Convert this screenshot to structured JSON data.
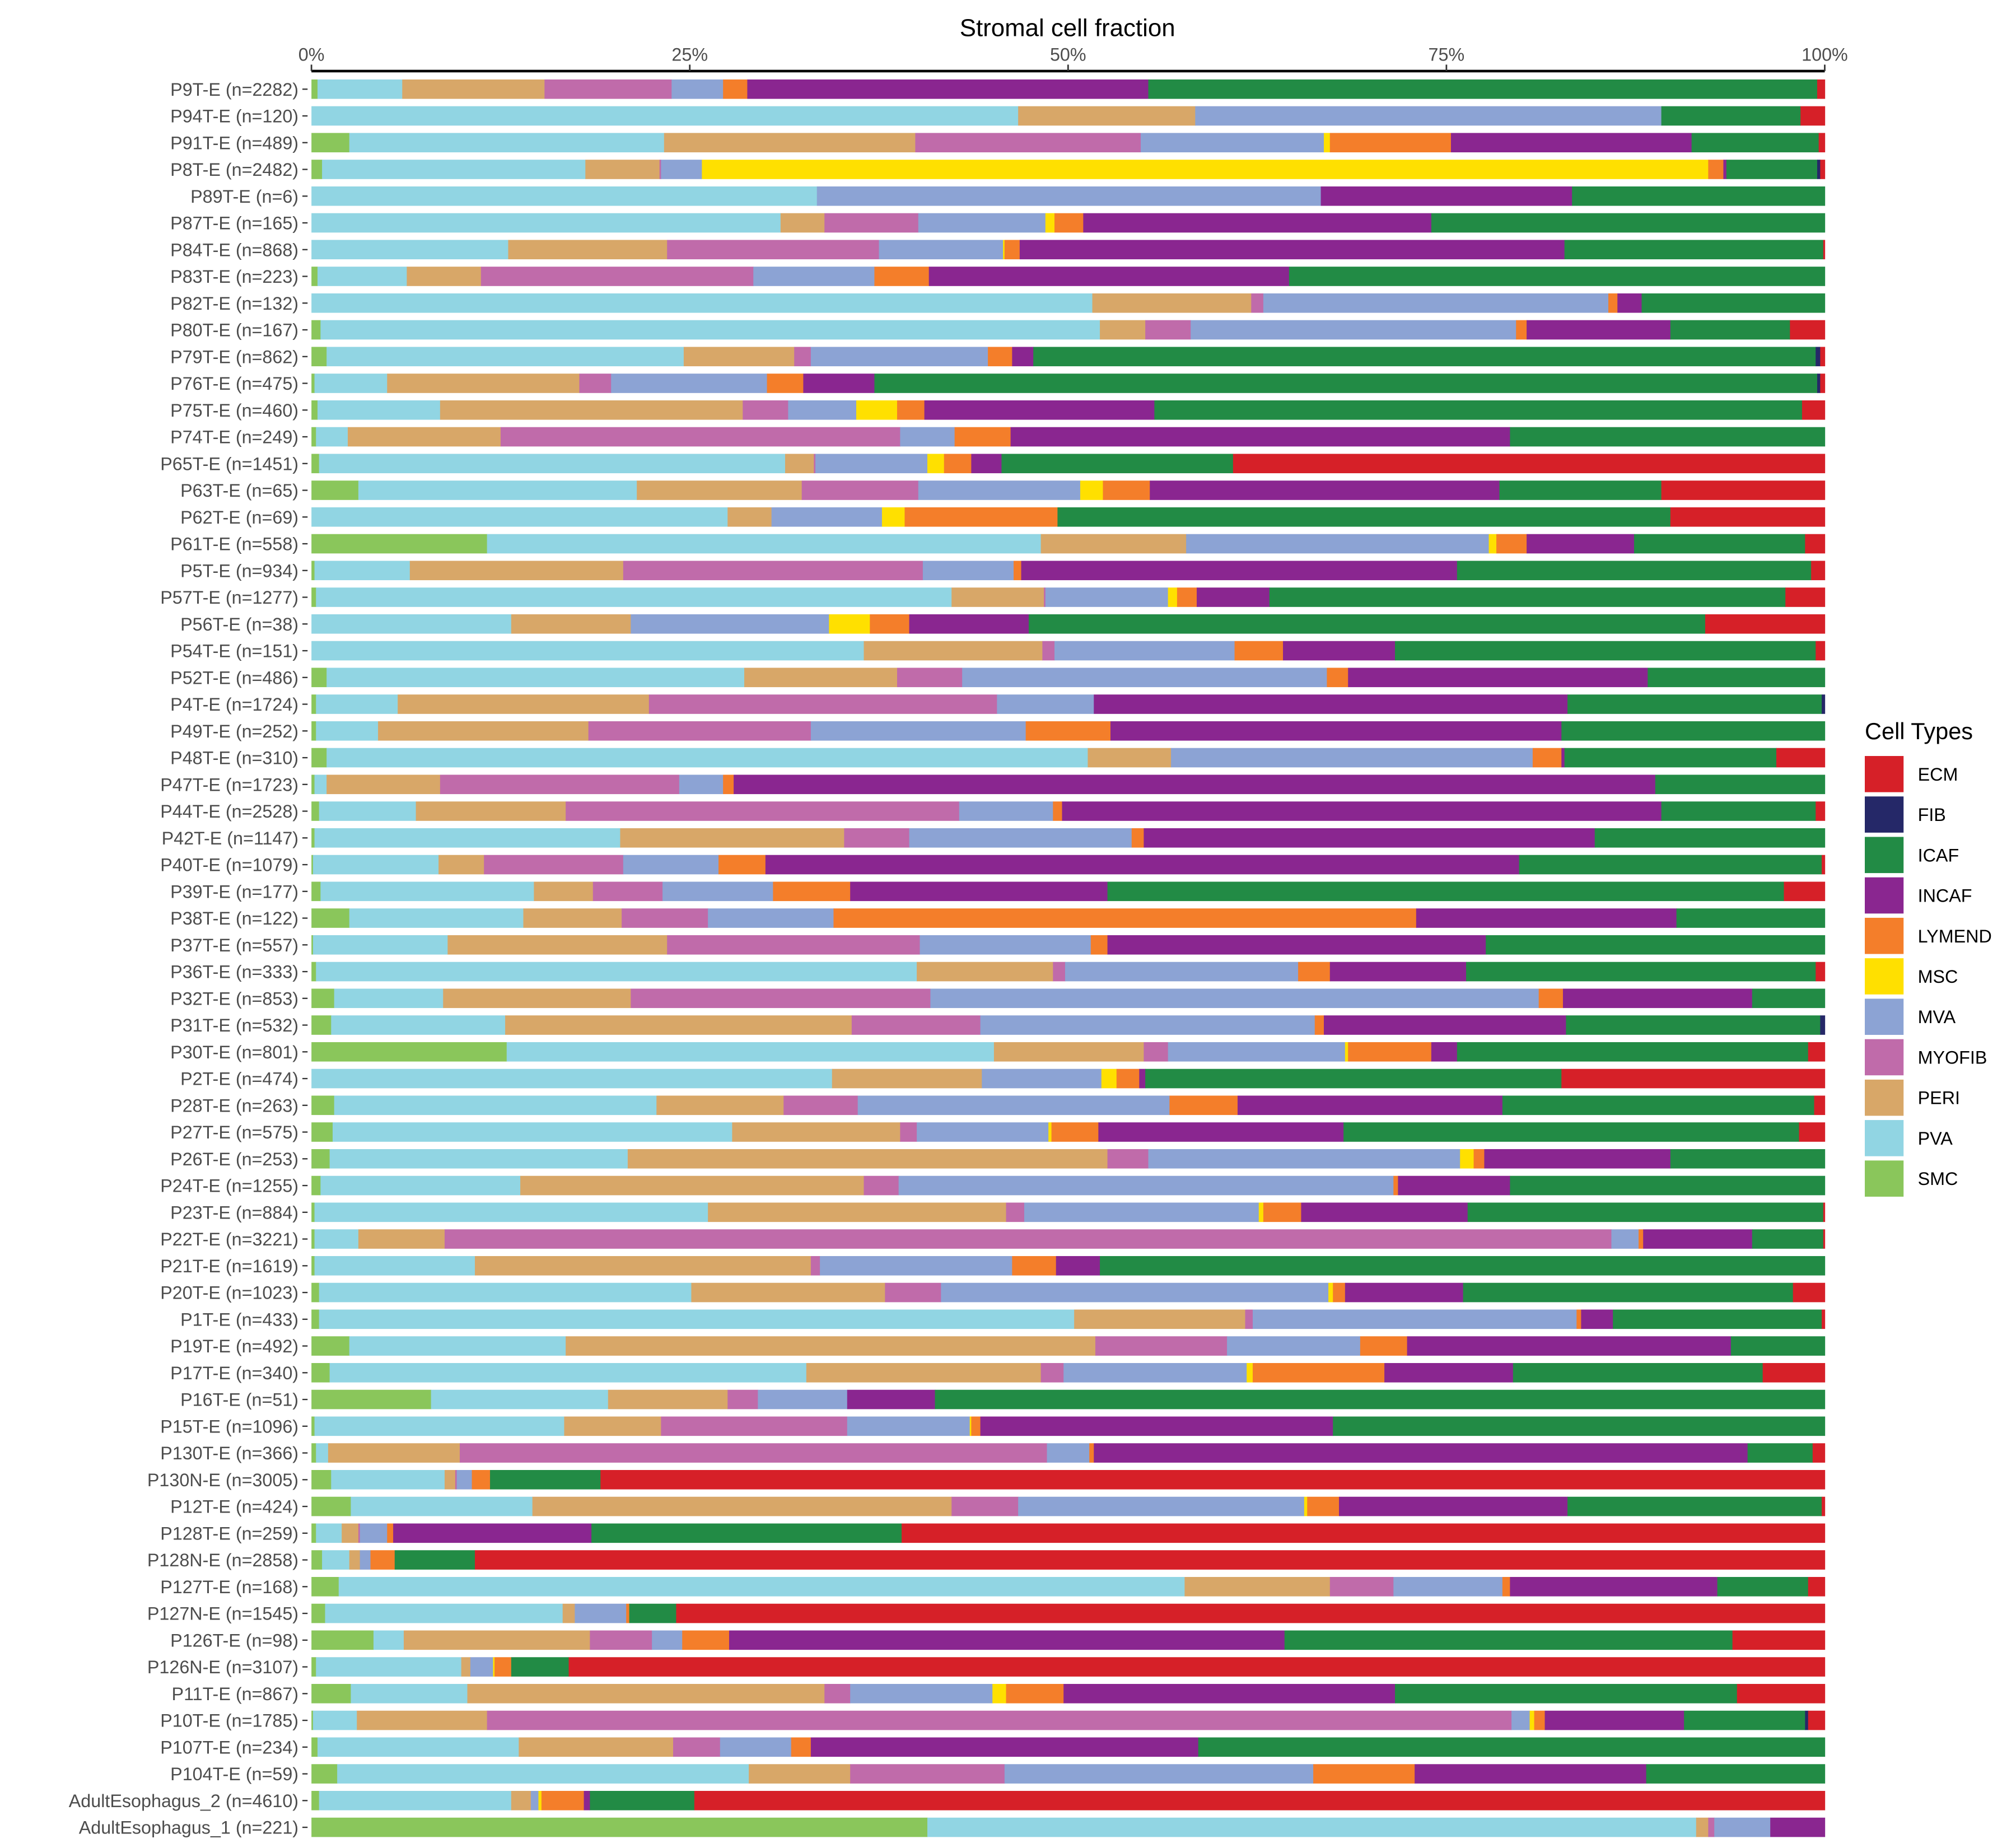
{
  "chart_data": {
    "type": "bar",
    "orientation": "horizontal",
    "stacked": true,
    "title": "Stromal cell fraction",
    "xlabel": "Stromal cell fraction",
    "ylabel": "",
    "xlim": [
      0,
      100
    ],
    "x_ticks": [
      "0%",
      "25%",
      "50%",
      "75%",
      "100%"
    ],
    "x_tick_values": [
      0,
      25,
      50,
      75,
      100
    ],
    "axis_position": "top",
    "grid": false,
    "legend": {
      "title": "Cell Types",
      "position": "right",
      "entries": [
        "ECM",
        "FIB",
        "ICAF",
        "INCAF",
        "LYMEND",
        "MSC",
        "MVA",
        "MYOFIB",
        "PERI",
        "PVA",
        "SMC"
      ]
    },
    "colors": {
      "ECM": "#d62028",
      "FIB": "#252868",
      "ICAF": "#228b45",
      "INCAF": "#8a2690",
      "LYMEND": "#f47e2a",
      "MSC": "#ffe000",
      "MVA": "#8ca3d4",
      "MYOFIB": "#c06baa",
      "PERI": "#d8a768",
      "PVA": "#91d5e3",
      "SMC": "#8ac65b"
    },
    "stack_order": [
      "SMC",
      "PVA",
      "PERI",
      "MYOFIB",
      "MVA",
      "MSC",
      "LYMEND",
      "INCAF",
      "ICAF",
      "FIB",
      "ECM"
    ],
    "categories": [
      "P9T-E (n=2282)",
      "P94T-E (n=120)",
      "P91T-E (n=489)",
      "P8T-E (n=2482)",
      "P89T-E (n=6)",
      "P87T-E (n=165)",
      "P84T-E (n=868)",
      "P83T-E (n=223)",
      "P82T-E (n=132)",
      "P80T-E (n=167)",
      "P79T-E (n=862)",
      "P76T-E (n=475)",
      "P75T-E (n=460)",
      "P74T-E (n=249)",
      "P65T-E (n=1451)",
      "P63T-E (n=65)",
      "P62T-E (n=69)",
      "P61T-E (n=558)",
      "P5T-E (n=934)",
      "P57T-E (n=1277)",
      "P56T-E (n=38)",
      "P54T-E (n=151)",
      "P52T-E (n=486)",
      "P4T-E (n=1724)",
      "P49T-E (n=252)",
      "P48T-E (n=310)",
      "P47T-E (n=1723)",
      "P44T-E (n=2528)",
      "P42T-E (n=1147)",
      "P40T-E (n=1079)",
      "P39T-E (n=177)",
      "P38T-E (n=122)",
      "P37T-E (n=557)",
      "P36T-E (n=333)",
      "P32T-E (n=853)",
      "P31T-E (n=532)",
      "P30T-E (n=801)",
      "P2T-E (n=474)",
      "P28T-E (n=263)",
      "P27T-E (n=575)",
      "P26T-E (n=253)",
      "P24T-E (n=1255)",
      "P23T-E (n=884)",
      "P22T-E (n=3221)",
      "P21T-E (n=1619)",
      "P20T-E (n=1023)",
      "P1T-E (n=433)",
      "P19T-E (n=492)",
      "P17T-E (n=340)",
      "P16T-E (n=51)",
      "P15T-E (n=1096)",
      "P130T-E (n=366)",
      "P130N-E (n=3005)",
      "P12T-E (n=424)",
      "P128T-E (n=259)",
      "P128N-E (n=2858)",
      "P127T-E (n=168)",
      "P127N-E (n=1545)",
      "P126T-E (n=98)",
      "P126N-E (n=3107)",
      "P11T-E (n=867)",
      "P10T-E (n=1785)",
      "P107T-E (n=234)",
      "P104T-E (n=59)",
      "AdultEsophagus_2 (n=4610)",
      "AdultEsophagus_1 (n=221)"
    ],
    "values_percent": [
      [
        0.4,
        5.6,
        9.4,
        8.4,
        3.4,
        0,
        1.6,
        26.5,
        44.2,
        0,
        0.5
      ],
      [
        0,
        46.7,
        11.7,
        0,
        30.8,
        0,
        0,
        0,
        9.2,
        0,
        1.6
      ],
      [
        2.5,
        20.8,
        16.6,
        14.9,
        12.1,
        0.4,
        8.0,
        15.9,
        8.4,
        0,
        0.4
      ],
      [
        0.7,
        17.4,
        4.9,
        0.1,
        2.7,
        66.5,
        1.0,
        0.2,
        6.0,
        0.2,
        0.3
      ],
      [
        0,
        33.4,
        0,
        0,
        33.3,
        0,
        0,
        16.6,
        16.7,
        0,
        0
      ],
      [
        0,
        31.0,
        2.9,
        6.2,
        8.4,
        0.6,
        1.9,
        23.0,
        26.0,
        0,
        0
      ],
      [
        0,
        13.0,
        10.5,
        14.0,
        8.2,
        0.1,
        1.0,
        36.0,
        17.1,
        0,
        0.1
      ],
      [
        0.4,
        5.9,
        4.9,
        18.0,
        8.0,
        0,
        3.6,
        23.8,
        35.4,
        0,
        0
      ],
      [
        0,
        51.6,
        10.5,
        0.8,
        22.8,
        0,
        0.6,
        1.6,
        12.1,
        0,
        0
      ],
      [
        0.6,
        51.5,
        3.0,
        3.0,
        21.5,
        0,
        0.7,
        9.5,
        7.9,
        0,
        2.3
      ],
      [
        1.0,
        23.6,
        7.3,
        1.1,
        11.7,
        0,
        1.6,
        1.4,
        51.7,
        0.3,
        0.3
      ],
      [
        0.2,
        4.8,
        12.7,
        2.1,
        10.3,
        0,
        2.4,
        4.7,
        62.3,
        0.2,
        0.3
      ],
      [
        0.4,
        8.1,
        20.0,
        3.0,
        4.5,
        2.7,
        1.8,
        15.2,
        42.8,
        0,
        1.5
      ],
      [
        0.3,
        2.1,
        10.1,
        26.4,
        3.6,
        0,
        3.7,
        33.0,
        20.8,
        0,
        0
      ],
      [
        0.5,
        30.8,
        1.9,
        0.1,
        7.4,
        1.1,
        1.8,
        2.0,
        15.3,
        0,
        39.1
      ],
      [
        3.1,
        18.4,
        10.9,
        7.7,
        10.7,
        1.5,
        3.1,
        23.1,
        10.7,
        0,
        10.8
      ],
      [
        0,
        27.5,
        2.9,
        0,
        7.3,
        1.5,
        10.1,
        0,
        40.5,
        0,
        10.2
      ],
      [
        11.6,
        36.6,
        9.6,
        0,
        20.0,
        0.5,
        2.0,
        7.1,
        11.3,
        0,
        1.3
      ],
      [
        0.2,
        6.3,
        14.1,
        19.8,
        6.0,
        0,
        0.5,
        28.8,
        23.4,
        0,
        0.9
      ],
      [
        0.3,
        42.0,
        6.1,
        0.1,
        8.1,
        0.6,
        1.3,
        4.8,
        34.1,
        0,
        2.6
      ],
      [
        0,
        13.2,
        7.9,
        0,
        13.1,
        2.7,
        2.6,
        7.9,
        44.7,
        0,
        7.9
      ],
      [
        0,
        36.5,
        11.8,
        0.8,
        11.9,
        0,
        3.2,
        7.4,
        27.8,
        0,
        0.6
      ],
      [
        1.0,
        27.6,
        10.1,
        4.3,
        24.1,
        0,
        1.4,
        19.8,
        11.7,
        0,
        0
      ],
      [
        0.3,
        5.4,
        16.6,
        23.0,
        6.4,
        0,
        0,
        31.3,
        16.8,
        0.2,
        0
      ],
      [
        0.3,
        4.1,
        13.9,
        14.7,
        14.2,
        0,
        5.6,
        29.8,
        17.4,
        0,
        0
      ],
      [
        1.0,
        50.3,
        5.5,
        0,
        23.9,
        0,
        1.9,
        0.2,
        14.0,
        0,
        3.2
      ],
      [
        0.2,
        0.8,
        7.5,
        15.8,
        2.9,
        0,
        0.7,
        60.9,
        11.2,
        0,
        0
      ],
      [
        0.5,
        6.4,
        9.9,
        26.0,
        6.2,
        0,
        0.6,
        39.6,
        10.2,
        0,
        0.6
      ],
      [
        0.2,
        20.2,
        14.8,
        4.3,
        14.7,
        0,
        0.8,
        29.8,
        15.2,
        0,
        0
      ],
      [
        0.1,
        8.3,
        3.0,
        9.2,
        6.3,
        0,
        3.1,
        49.8,
        20.0,
        0,
        0.2
      ],
      [
        0.6,
        14.1,
        3.9,
        4.6,
        7.3,
        0,
        5.1,
        17.0,
        44.7,
        0,
        2.7
      ],
      [
        2.5,
        11.5,
        6.5,
        5.7,
        8.3,
        0,
        38.5,
        17.2,
        9.8,
        0,
        0
      ],
      [
        0.1,
        8.9,
        14.5,
        16.7,
        11.3,
        0,
        1.1,
        25.0,
        22.4,
        0,
        0
      ],
      [
        0.3,
        39.7,
        9.0,
        0.8,
        15.4,
        0,
        2.1,
        9.0,
        23.1,
        0,
        0.6
      ],
      [
        1.5,
        7.2,
        12.4,
        19.8,
        40.2,
        0,
        1.6,
        12.5,
        4.8,
        0,
        0
      ],
      [
        1.3,
        11.5,
        22.9,
        8.5,
        22.1,
        0,
        0.6,
        16.0,
        16.8,
        0.3,
        0
      ],
      [
        12.9,
        32.2,
        9.9,
        1.6,
        11.7,
        0.2,
        5.5,
        1.7,
        23.2,
        0,
        1.1
      ],
      [
        0,
        34.4,
        9.9,
        0,
        7.9,
        1.0,
        1.5,
        0.4,
        27.5,
        0,
        17.4
      ],
      [
        1.5,
        21.3,
        8.4,
        4.9,
        20.6,
        0,
        4.5,
        17.5,
        20.6,
        0,
        0.7
      ],
      [
        1.4,
        26.4,
        11.1,
        1.1,
        8.7,
        0.2,
        3.1,
        16.2,
        30.1,
        0,
        1.7
      ],
      [
        1.2,
        19.7,
        31.7,
        2.7,
        20.6,
        0.9,
        0.7,
        12.3,
        10.2,
        0,
        0
      ],
      [
        0.6,
        13.2,
        22.7,
        2.3,
        32.7,
        0,
        0.3,
        7.4,
        20.8,
        0,
        0
      ],
      [
        0.2,
        26.0,
        19.7,
        1.2,
        15.5,
        0.3,
        2.5,
        11.0,
        23.5,
        0,
        0.1
      ],
      [
        0.2,
        2.9,
        5.7,
        77.1,
        1.8,
        0,
        0.3,
        7.2,
        4.7,
        0,
        0.1
      ],
      [
        0.2,
        10.6,
        22.2,
        0.6,
        12.7,
        0,
        2.9,
        2.9,
        47.9,
        0,
        0
      ],
      [
        0.5,
        24.6,
        12.8,
        3.7,
        25.6,
        0.3,
        0.8,
        7.8,
        21.8,
        0,
        2.1
      ],
      [
        0.5,
        49.9,
        11.3,
        0.5,
        21.4,
        0,
        0.3,
        2.1,
        13.8,
        0,
        0.2
      ],
      [
        2.5,
        14.3,
        35.0,
        8.7,
        8.8,
        0,
        3.1,
        21.4,
        6.2,
        0,
        0
      ],
      [
        1.2,
        31.5,
        15.5,
        1.5,
        12.1,
        0.4,
        8.7,
        8.5,
        16.5,
        0,
        4.1
      ],
      [
        7.9,
        11.7,
        7.9,
        2.0,
        5.9,
        0,
        0,
        5.8,
        58.8,
        0,
        0
      ],
      [
        0.2,
        16.5,
        6.4,
        12.3,
        8.1,
        0.1,
        0.6,
        23.3,
        32.5,
        0,
        0
      ],
      [
        0.3,
        0.8,
        8.7,
        38.8,
        2.8,
        0,
        0.3,
        43.2,
        4.3,
        0,
        0.8
      ],
      [
        1.3,
        7.5,
        0.7,
        0.1,
        1.0,
        0,
        1.2,
        0,
        7.3,
        0,
        80.9
      ],
      [
        2.6,
        12.0,
        27.7,
        4.4,
        18.9,
        0.2,
        2.1,
        15.1,
        16.8,
        0,
        0.2
      ],
      [
        0.3,
        1.7,
        1.1,
        0.1,
        1.8,
        0,
        0.4,
        13.1,
        20.5,
        0,
        61.0
      ],
      [
        0.7,
        1.8,
        0.7,
        0,
        0.7,
        0,
        1.6,
        0,
        5.3,
        0,
        89.2
      ],
      [
        1.8,
        55.9,
        9.6,
        4.2,
        7.2,
        0,
        0.5,
        13.7,
        6.0,
        0,
        1.1
      ],
      [
        0.9,
        15.7,
        0.8,
        0,
        3.4,
        0,
        0.2,
        0,
        3.1,
        0,
        75.9
      ],
      [
        4.1,
        2.0,
        12.3,
        4.1,
        2.0,
        0,
        3.1,
        36.7,
        29.6,
        0,
        6.1
      ],
      [
        0.3,
        9.6,
        0.6,
        0,
        1.5,
        0.1,
        1.1,
        0,
        3.8,
        0,
        83.0
      ],
      [
        2.6,
        7.7,
        23.6,
        1.7,
        9.4,
        0.9,
        3.8,
        21.9,
        22.6,
        0,
        5.8
      ],
      [
        0.1,
        2.9,
        8.6,
        67.7,
        1.2,
        0.3,
        0.7,
        9.2,
        8.0,
        0.2,
        1.1
      ],
      [
        0.4,
        13.3,
        10.2,
        3.1,
        4.7,
        0,
        1.3,
        25.6,
        41.4,
        0,
        0
      ],
      [
        1.7,
        27.2,
        6.7,
        10.2,
        20.4,
        0,
        6.7,
        15.3,
        11.8,
        0,
        0
      ],
      [
        0.5,
        12.7,
        1.3,
        0,
        0.5,
        0.2,
        2.8,
        0.4,
        6.9,
        0,
        74.7
      ],
      [
        40.7,
        50.8,
        0.8,
        0.4,
        3.7,
        0,
        0,
        3.6,
        0,
        0,
        0
      ]
    ]
  }
}
